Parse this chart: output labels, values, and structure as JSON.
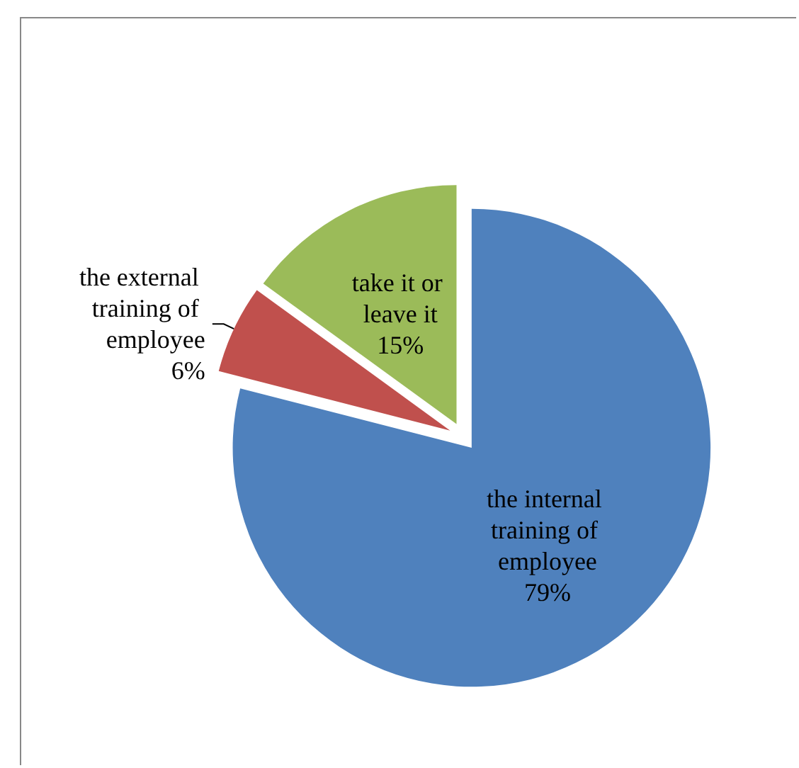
{
  "chart_data": {
    "type": "pie",
    "categories": [
      "the internal training of employee",
      "the external training of employee",
      "take it or leave it"
    ],
    "values": [
      79,
      6,
      15
    ],
    "value_labels": [
      "79%",
      "6%",
      "15%"
    ],
    "colors": [
      "#4f81bd",
      "#c0504d",
      "#9bbb59"
    ]
  }
}
